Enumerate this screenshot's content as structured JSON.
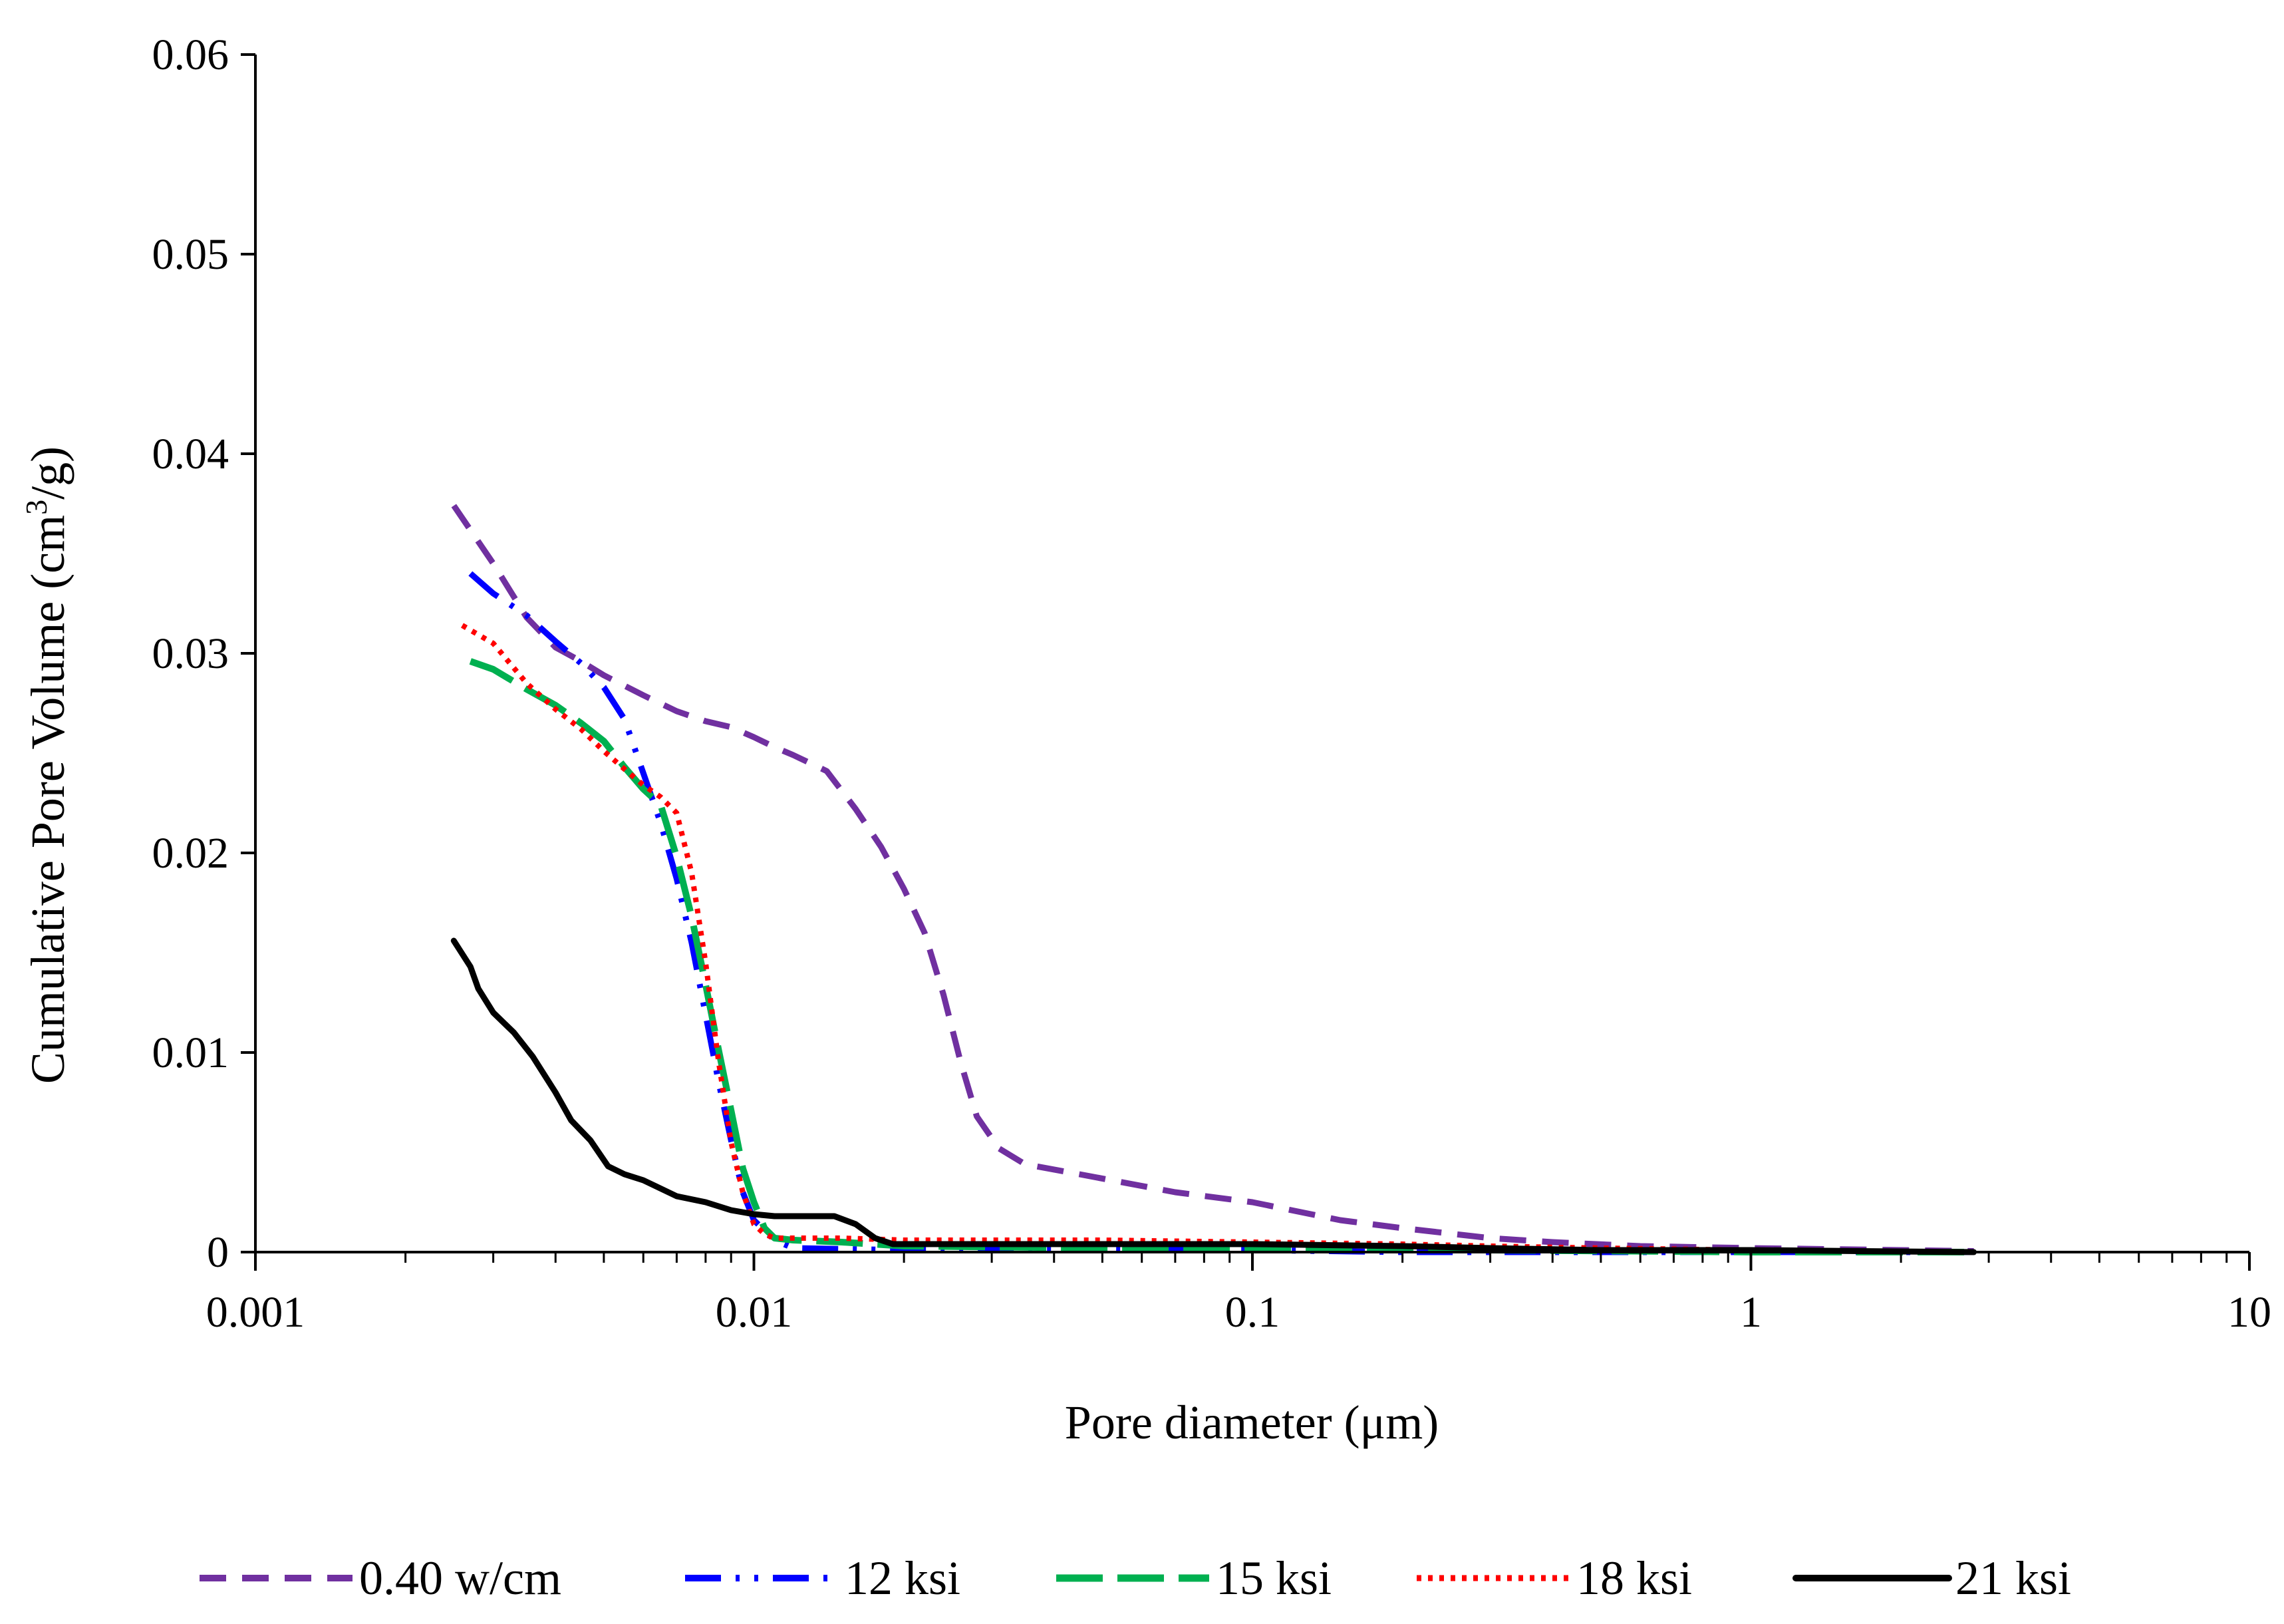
{
  "chart_data": {
    "type": "line",
    "title": "",
    "xlabel": "Pore diameter (μm)",
    "ylabel": "Cumulative Pore Volume (cm³/g)",
    "xscale": "log",
    "xlim": [
      0.001,
      10
    ],
    "ylim": [
      0,
      0.06
    ],
    "x_ticks": [
      0.001,
      0.01,
      0.1,
      1,
      10
    ],
    "x_tick_labels": [
      "0.001",
      "0.01",
      "0.1",
      "1",
      "10"
    ],
    "y_ticks": [
      0,
      0.01,
      0.02,
      0.03,
      0.04,
      0.05,
      0.06
    ],
    "y_tick_labels": [
      "0",
      "0.01",
      "0.02",
      "0.03",
      "0.04",
      "0.05",
      "0.06"
    ],
    "grid": false,
    "legend_position": "bottom",
    "series": [
      {
        "name": "0.40 w/cm",
        "color": "#7030A0",
        "dash": "dashed",
        "points": [
          [
            0.0025,
            0.0374
          ],
          [
            0.003,
            0.0345
          ],
          [
            0.0035,
            0.0318
          ],
          [
            0.004,
            0.0303
          ],
          [
            0.0045,
            0.0296
          ],
          [
            0.005,
            0.0289
          ],
          [
            0.006,
            0.0279
          ],
          [
            0.007,
            0.0271
          ],
          [
            0.008,
            0.0266
          ],
          [
            0.009,
            0.0263
          ],
          [
            0.01,
            0.0258
          ],
          [
            0.011,
            0.0253
          ],
          [
            0.012,
            0.0249
          ],
          [
            0.014,
            0.0241
          ],
          [
            0.016,
            0.0222
          ],
          [
            0.018,
            0.0203
          ],
          [
            0.02,
            0.0182
          ],
          [
            0.022,
            0.016
          ],
          [
            0.024,
            0.0129
          ],
          [
            0.026,
            0.0095
          ],
          [
            0.028,
            0.0068
          ],
          [
            0.031,
            0.0052
          ],
          [
            0.035,
            0.0044
          ],
          [
            0.045,
            0.0039
          ],
          [
            0.07,
            0.003
          ],
          [
            0.1,
            0.0025
          ],
          [
            0.15,
            0.0016
          ],
          [
            0.2,
            0.0012
          ],
          [
            0.3,
            0.0007
          ],
          [
            0.4,
            0.0005
          ],
          [
            0.6,
            0.0003
          ],
          [
            1,
            0.0002
          ],
          [
            2,
            0.0001
          ],
          [
            2.8,
            5e-05
          ]
        ]
      },
      {
        "name": "12 ksi",
        "color": "#0000FF",
        "dash": "dash-dot-dot",
        "points": [
          [
            0.0027,
            0.034
          ],
          [
            0.003,
            0.033
          ],
          [
            0.0035,
            0.0319
          ],
          [
            0.004,
            0.0306
          ],
          [
            0.0045,
            0.0295
          ],
          [
            0.005,
            0.0283
          ],
          [
            0.0055,
            0.0267
          ],
          [
            0.006,
            0.024
          ],
          [
            0.0065,
            0.0215
          ],
          [
            0.007,
            0.0187
          ],
          [
            0.0075,
            0.0155
          ],
          [
            0.008,
            0.0119
          ],
          [
            0.0085,
            0.0085
          ],
          [
            0.009,
            0.0056
          ],
          [
            0.0095,
            0.003
          ],
          [
            0.01,
            0.0016
          ],
          [
            0.011,
            0.0006
          ],
          [
            0.012,
            0.0002
          ],
          [
            0.02,
            0.0001
          ],
          [
            0.05,
            0.0001
          ],
          [
            0.1,
            0.0001
          ],
          [
            0.2,
            0.0
          ],
          [
            2.8,
            0.0
          ]
        ]
      },
      {
        "name": "15 ksi",
        "color": "#00B050",
        "dash": "long-dash",
        "points": [
          [
            0.0027,
            0.0296
          ],
          [
            0.003,
            0.0292
          ],
          [
            0.0035,
            0.0282
          ],
          [
            0.004,
            0.0274
          ],
          [
            0.0045,
            0.0265
          ],
          [
            0.005,
            0.0256
          ],
          [
            0.0055,
            0.0243
          ],
          [
            0.006,
            0.0232
          ],
          [
            0.0065,
            0.0224
          ],
          [
            0.007,
            0.0198
          ],
          [
            0.0075,
            0.0168
          ],
          [
            0.008,
            0.0134
          ],
          [
            0.0085,
            0.0101
          ],
          [
            0.009,
            0.0071
          ],
          [
            0.0095,
            0.0042
          ],
          [
            0.01,
            0.0025
          ],
          [
            0.0105,
            0.0012
          ],
          [
            0.011,
            0.0007
          ],
          [
            0.012,
            0.0006
          ],
          [
            0.015,
            0.0005
          ],
          [
            0.02,
            0.0003
          ],
          [
            0.05,
            0.0002
          ],
          [
            0.1,
            0.0002
          ],
          [
            0.2,
            0.0001
          ],
          [
            0.3,
            0.0001
          ],
          [
            1,
            0.0
          ],
          [
            2.8,
            0.0
          ]
        ]
      },
      {
        "name": "18 ksi",
        "color": "#FF0000",
        "dash": "dotted",
        "points": [
          [
            0.0026,
            0.0314
          ],
          [
            0.003,
            0.0305
          ],
          [
            0.0035,
            0.0285
          ],
          [
            0.004,
            0.0272
          ],
          [
            0.0045,
            0.0262
          ],
          [
            0.005,
            0.0251
          ],
          [
            0.0055,
            0.0242
          ],
          [
            0.006,
            0.0234
          ],
          [
            0.0065,
            0.0228
          ],
          [
            0.007,
            0.022
          ],
          [
            0.0075,
            0.019
          ],
          [
            0.008,
            0.0145
          ],
          [
            0.0085,
            0.0095
          ],
          [
            0.009,
            0.0055
          ],
          [
            0.0095,
            0.003
          ],
          [
            0.01,
            0.0014
          ],
          [
            0.0105,
            0.0009
          ],
          [
            0.011,
            0.0007
          ],
          [
            0.015,
            0.0007
          ],
          [
            0.02,
            0.0006
          ],
          [
            0.05,
            0.0006
          ],
          [
            0.1,
            0.0005
          ],
          [
            0.2,
            0.0004
          ],
          [
            0.3,
            0.0003
          ],
          [
            0.5,
            0.0002
          ],
          [
            1,
            0.0001
          ],
          [
            2.8,
            0.0
          ]
        ]
      },
      {
        "name": "21 ksi",
        "color": "#000000",
        "dash": "solid",
        "points": [
          [
            0.0025,
            0.0156
          ],
          [
            0.0027,
            0.0143
          ],
          [
            0.0028,
            0.0132
          ],
          [
            0.003,
            0.012
          ],
          [
            0.0033,
            0.011
          ],
          [
            0.0036,
            0.0098
          ],
          [
            0.004,
            0.008
          ],
          [
            0.0043,
            0.0066
          ],
          [
            0.0047,
            0.0056
          ],
          [
            0.0051,
            0.0043
          ],
          [
            0.0055,
            0.0039
          ],
          [
            0.006,
            0.0036
          ],
          [
            0.007,
            0.0028
          ],
          [
            0.008,
            0.0025
          ],
          [
            0.009,
            0.0021
          ],
          [
            0.01,
            0.0019
          ],
          [
            0.011,
            0.0018
          ],
          [
            0.013,
            0.0018
          ],
          [
            0.0145,
            0.0018
          ],
          [
            0.016,
            0.0014
          ],
          [
            0.0175,
            0.0007
          ],
          [
            0.019,
            0.0004
          ],
          [
            0.03,
            0.0004
          ],
          [
            0.05,
            0.0004
          ],
          [
            0.1,
            0.0004
          ],
          [
            0.2,
            0.0003
          ],
          [
            0.3,
            0.0002
          ],
          [
            0.5,
            0.0001
          ],
          [
            1,
            0.0001
          ],
          [
            2.8,
            0.0
          ]
        ]
      }
    ]
  }
}
